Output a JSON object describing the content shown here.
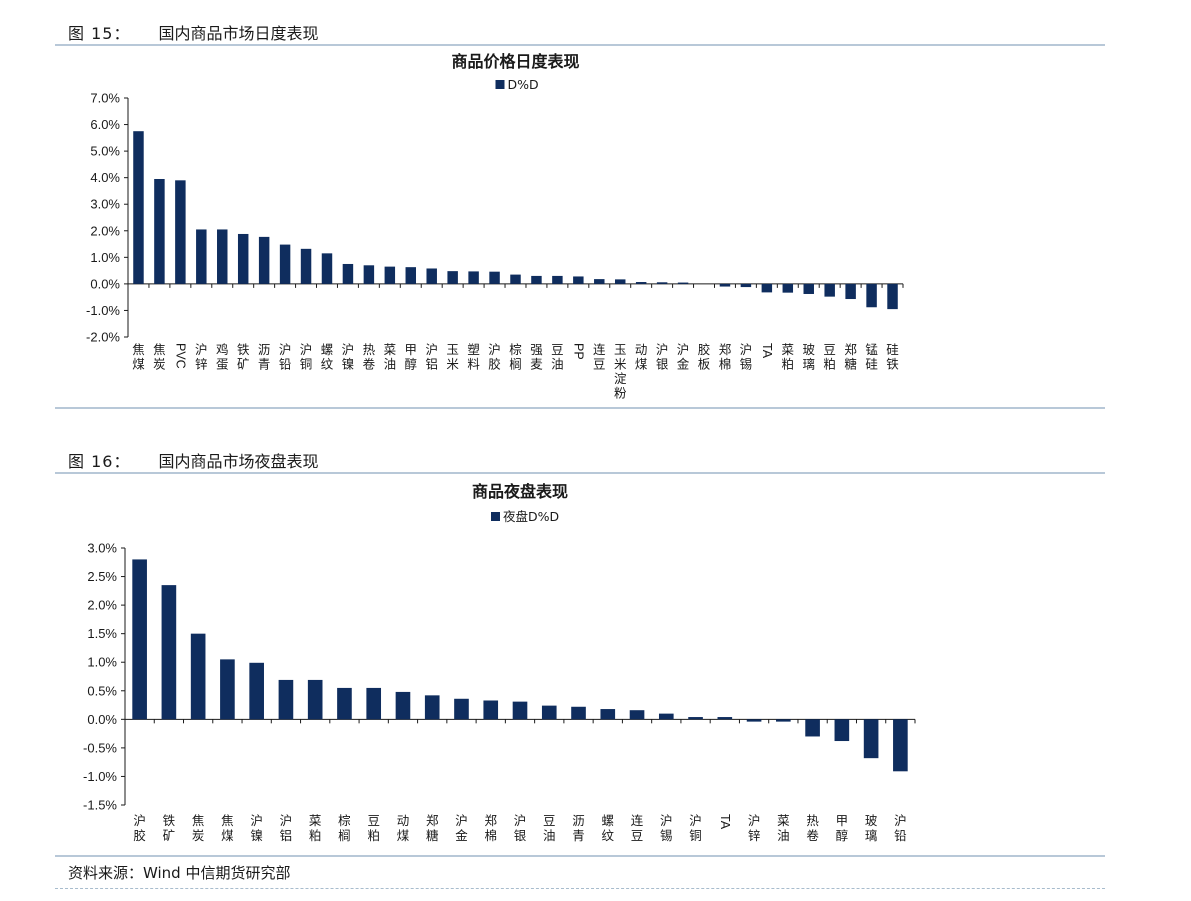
{
  "figures": [
    {
      "number_label": "图 15：",
      "caption": "国内商品市场日度表现"
    },
    {
      "number_label": "图 16：",
      "caption": "国内商品市场夜盘表现"
    }
  ],
  "source": "资料来源：Wind  中信期货研究部",
  "chart_data": [
    {
      "type": "bar",
      "title": "商品价格日度表现",
      "color": "#0f2d5e",
      "ylim": [
        -2.0,
        7.0
      ],
      "ystep": 1.0,
      "tick_decimals": 1,
      "legend_position": "top-center",
      "grid": false,
      "categories": [
        "焦煤",
        "焦炭",
        "PVC",
        "沪锌",
        "鸡蛋",
        "铁矿",
        "沥青",
        "沪铅",
        "沪铜",
        "螺纹",
        "沪镍",
        "热卷",
        "菜油",
        "甲醇",
        "沪铝",
        "玉米",
        "塑料",
        "沪胶",
        "棕榈",
        "强麦",
        "豆油",
        "PP",
        "连豆",
        "玉米淀粉",
        "动煤",
        "沪银",
        "沪金",
        "胶板",
        "郑棉",
        "沪锡",
        "TA",
        "菜粕",
        "玻璃",
        "豆粕",
        "郑糖",
        "锰硅",
        "硅铁"
      ],
      "series": [
        {
          "name": "D%D",
          "values": [
            5.75,
            3.95,
            3.9,
            2.05,
            2.05,
            1.88,
            1.77,
            1.48,
            1.32,
            1.15,
            0.75,
            0.7,
            0.65,
            0.63,
            0.58,
            0.48,
            0.47,
            0.46,
            0.35,
            0.3,
            0.3,
            0.28,
            0.18,
            0.17,
            0.07,
            0.06,
            0.05,
            0.0,
            -0.1,
            -0.12,
            -0.32,
            -0.33,
            -0.38,
            -0.48,
            -0.57,
            -0.88,
            -0.95
          ]
        }
      ]
    },
    {
      "type": "bar",
      "title": "商品夜盘表现",
      "color": "#0f2d5e",
      "ylim": [
        -1.5,
        3.0
      ],
      "ystep": 0.5,
      "tick_decimals": 1,
      "legend_position": "top-center",
      "grid": false,
      "categories": [
        "沪胶",
        "铁矿",
        "焦炭",
        "焦煤",
        "沪镍",
        "沪铝",
        "菜粕",
        "棕榈",
        "豆粕",
        "动煤",
        "郑糖",
        "沪金",
        "郑棉",
        "沪银",
        "豆油",
        "沥青",
        "螺纹",
        "连豆",
        "沪锡",
        "沪铜",
        "TA",
        "沪锌",
        "菜油",
        "热卷",
        "甲醇",
        "玻璃",
        "沪铅"
      ],
      "series": [
        {
          "name": "夜盘D%D",
          "values": [
            2.8,
            2.35,
            1.5,
            1.05,
            0.99,
            0.69,
            0.69,
            0.55,
            0.55,
            0.48,
            0.42,
            0.36,
            0.33,
            0.31,
            0.24,
            0.22,
            0.18,
            0.16,
            0.1,
            0.04,
            0.04,
            -0.04,
            -0.04,
            -0.3,
            -0.38,
            -0.68,
            -0.91
          ]
        }
      ]
    }
  ]
}
